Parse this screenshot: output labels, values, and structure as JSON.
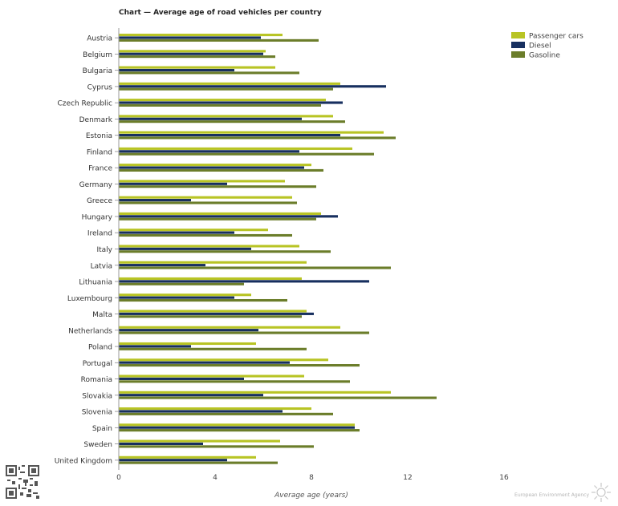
{
  "chart_data": {
    "type": "bar",
    "orientation": "horizontal",
    "title": "Chart — Average age of road vehicles per country",
    "xlabel": "Average age (years)",
    "ylabel": "",
    "xlim": [
      0,
      16
    ],
    "xticks": [
      0,
      4,
      8,
      12,
      16
    ],
    "grid": false,
    "legend_position": "top-right",
    "categories": [
      "Austria",
      "Belgium",
      "Bulgaria",
      "Cyprus",
      "Czech Republic",
      "Denmark",
      "Estonia",
      "Finland",
      "France",
      "Germany",
      "Greece",
      "Hungary",
      "Ireland",
      "Italy",
      "Latvia",
      "Lithuania",
      "Luxembourg",
      "Malta",
      "Netherlands",
      "Poland",
      "Portugal",
      "Romania",
      "Slovakia",
      "Slovenia",
      "Spain",
      "Sweden",
      "United Kingdom"
    ],
    "series": [
      {
        "name": "Passenger cars",
        "color": "#b8c424",
        "values": [
          6.8,
          6.1,
          6.5,
          9.2,
          8.6,
          8.9,
          11.0,
          9.7,
          8.0,
          6.9,
          7.2,
          8.4,
          6.2,
          7.5,
          7.8,
          7.6,
          5.5,
          7.8,
          9.2,
          5.7,
          8.7,
          7.7,
          11.3,
          8.0,
          9.8,
          6.7,
          5.7
        ]
      },
      {
        "name": "Diesel",
        "color": "#172f5f",
        "values": [
          5.9,
          6.0,
          4.8,
          11.1,
          9.3,
          7.6,
          9.2,
          7.5,
          7.7,
          4.5,
          3.0,
          9.1,
          4.8,
          5.5,
          3.6,
          10.4,
          4.8,
          8.1,
          5.8,
          3.0,
          7.1,
          5.2,
          6.0,
          6.8,
          9.8,
          3.5,
          4.5
        ]
      },
      {
        "name": "Gasoline",
        "color": "#6b7d2a",
        "values": [
          8.3,
          6.5,
          7.5,
          8.9,
          8.4,
          9.4,
          11.5,
          10.6,
          8.5,
          8.2,
          7.4,
          8.2,
          7.2,
          8.8,
          11.3,
          5.2,
          7.0,
          7.6,
          10.4,
          7.8,
          10.0,
          9.6,
          13.2,
          8.9,
          10.0,
          8.1,
          6.6
        ]
      }
    ]
  },
  "footer": {
    "source": "European Environment Agency"
  }
}
